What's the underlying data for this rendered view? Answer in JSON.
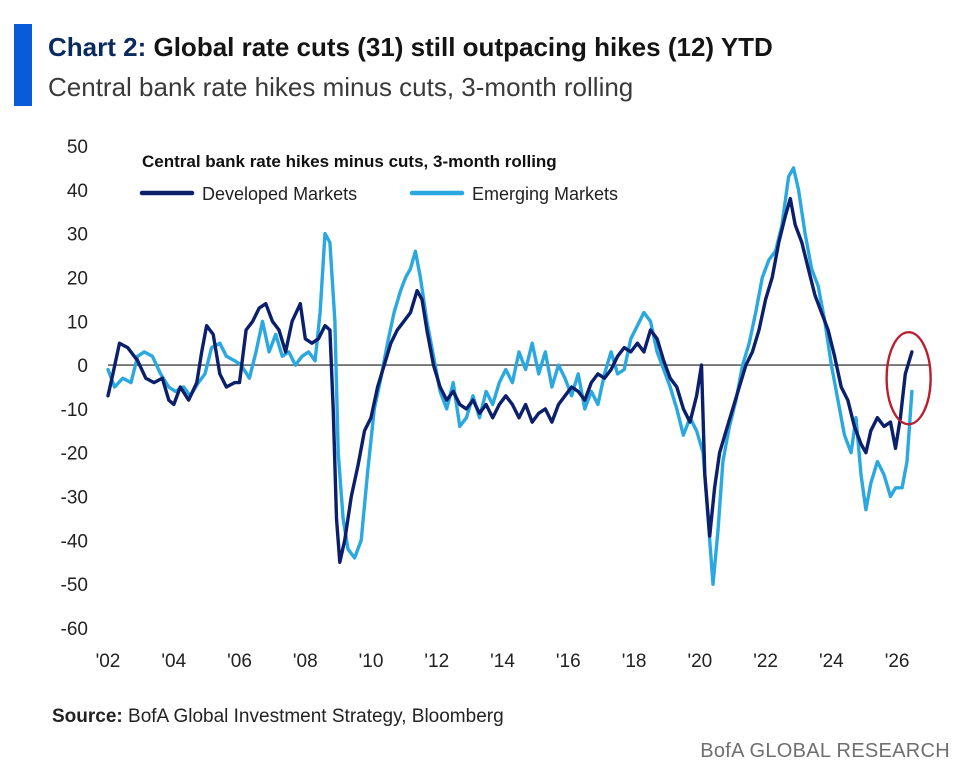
{
  "header": {
    "title_lead": "Chart 2:",
    "title_rest": "Global rate cuts (31) still outpacing hikes (12) YTD",
    "subtitle": "Central bank rate hikes minus cuts, 3-month rolling"
  },
  "footer": {
    "source_label": "Source:",
    "source_text": "BofA Global Investment Strategy, Bloomberg",
    "brand": "BofA GLOBAL RESEARCH"
  },
  "colors": {
    "accent": "#0a5bd8",
    "developed": "#0b1f6b",
    "emerging": "#2ba8e0",
    "highlight_circle": "#b8202f",
    "zero_line": "#444444"
  },
  "chart_data": {
    "type": "line",
    "title": "Central bank rate hikes minus cuts, 3-month rolling",
    "legend_placement": "top-left",
    "grid": false,
    "ylim": [
      -60,
      50
    ],
    "xlim": [
      2002,
      2027
    ],
    "y_ticks": [
      50,
      40,
      30,
      20,
      10,
      0,
      -10,
      -20,
      -30,
      -40,
      -50,
      -60
    ],
    "x_ticks": [
      {
        "value": 2002,
        "label": "'02"
      },
      {
        "value": 2004,
        "label": "'04"
      },
      {
        "value": 2006,
        "label": "'06"
      },
      {
        "value": 2008,
        "label": "'08"
      },
      {
        "value": 2010,
        "label": "'10"
      },
      {
        "value": 2012,
        "label": "'12"
      },
      {
        "value": 2014,
        "label": "'14"
      },
      {
        "value": 2016,
        "label": "'16"
      },
      {
        "value": 2018,
        "label": "'18"
      },
      {
        "value": 2020,
        "label": "'20"
      },
      {
        "value": 2022,
        "label": "'22"
      },
      {
        "value": 2024,
        "label": "'24"
      },
      {
        "value": 2026,
        "label": "'26"
      }
    ],
    "highlight": {
      "x": 2026.35,
      "y": -3,
      "label": ""
    },
    "series": [
      {
        "name": "Developed Markets",
        "color": "#0b1f6b",
        "points": [
          [
            2002.0,
            -7
          ],
          [
            2002.15,
            -2
          ],
          [
            2002.35,
            5
          ],
          [
            2002.6,
            4
          ],
          [
            2002.9,
            1
          ],
          [
            2003.15,
            -3
          ],
          [
            2003.4,
            -4
          ],
          [
            2003.65,
            -3
          ],
          [
            2003.85,
            -8
          ],
          [
            2004.0,
            -9
          ],
          [
            2004.2,
            -5
          ],
          [
            2004.45,
            -8
          ],
          [
            2004.7,
            -4
          ],
          [
            2004.85,
            3
          ],
          [
            2005.0,
            9
          ],
          [
            2005.2,
            7
          ],
          [
            2005.4,
            -2
          ],
          [
            2005.6,
            -5
          ],
          [
            2005.85,
            -4
          ],
          [
            2006.0,
            -4
          ],
          [
            2006.2,
            8
          ],
          [
            2006.4,
            10
          ],
          [
            2006.6,
            13
          ],
          [
            2006.8,
            14
          ],
          [
            2007.0,
            10
          ],
          [
            2007.2,
            8
          ],
          [
            2007.4,
            3
          ],
          [
            2007.6,
            10
          ],
          [
            2007.85,
            14
          ],
          [
            2008.0,
            6
          ],
          [
            2008.2,
            5
          ],
          [
            2008.4,
            6
          ],
          [
            2008.6,
            9
          ],
          [
            2008.75,
            8
          ],
          [
            2008.85,
            -10
          ],
          [
            2008.95,
            -35
          ],
          [
            2009.05,
            -45
          ],
          [
            2009.2,
            -40
          ],
          [
            2009.4,
            -30
          ],
          [
            2009.6,
            -23
          ],
          [
            2009.8,
            -15
          ],
          [
            2010.0,
            -12
          ],
          [
            2010.2,
            -5
          ],
          [
            2010.4,
            0
          ],
          [
            2010.6,
            5
          ],
          [
            2010.8,
            8
          ],
          [
            2011.0,
            10
          ],
          [
            2011.2,
            12
          ],
          [
            2011.4,
            17
          ],
          [
            2011.55,
            15
          ],
          [
            2011.7,
            8
          ],
          [
            2011.9,
            0
          ],
          [
            2012.1,
            -5
          ],
          [
            2012.3,
            -8
          ],
          [
            2012.5,
            -6
          ],
          [
            2012.7,
            -9
          ],
          [
            2012.9,
            -10
          ],
          [
            2013.1,
            -8
          ],
          [
            2013.3,
            -11
          ],
          [
            2013.5,
            -9
          ],
          [
            2013.7,
            -12
          ],
          [
            2013.9,
            -9
          ],
          [
            2014.1,
            -7
          ],
          [
            2014.3,
            -9
          ],
          [
            2014.5,
            -12
          ],
          [
            2014.7,
            -9
          ],
          [
            2014.9,
            -13
          ],
          [
            2015.1,
            -11
          ],
          [
            2015.3,
            -10
          ],
          [
            2015.5,
            -13
          ],
          [
            2015.7,
            -9
          ],
          [
            2015.9,
            -7
          ],
          [
            2016.1,
            -5
          ],
          [
            2016.3,
            -6
          ],
          [
            2016.5,
            -8
          ],
          [
            2016.7,
            -4
          ],
          [
            2016.9,
            -2
          ],
          [
            2017.1,
            -3
          ],
          [
            2017.3,
            -1
          ],
          [
            2017.5,
            2
          ],
          [
            2017.7,
            4
          ],
          [
            2017.9,
            3
          ],
          [
            2018.1,
            5
          ],
          [
            2018.3,
            3
          ],
          [
            2018.5,
            8
          ],
          [
            2018.7,
            6
          ],
          [
            2018.9,
            1
          ],
          [
            2019.1,
            -3
          ],
          [
            2019.3,
            -5
          ],
          [
            2019.5,
            -10
          ],
          [
            2019.7,
            -13
          ],
          [
            2019.9,
            -7
          ],
          [
            2020.05,
            0
          ],
          [
            2020.15,
            -25
          ],
          [
            2020.3,
            -39
          ],
          [
            2020.45,
            -28
          ],
          [
            2020.6,
            -20
          ],
          [
            2020.8,
            -15
          ],
          [
            2021.0,
            -10
          ],
          [
            2021.2,
            -5
          ],
          [
            2021.4,
            0
          ],
          [
            2021.6,
            3
          ],
          [
            2021.8,
            8
          ],
          [
            2022.0,
            15
          ],
          [
            2022.2,
            20
          ],
          [
            2022.4,
            28
          ],
          [
            2022.6,
            34
          ],
          [
            2022.75,
            38
          ],
          [
            2022.9,
            32
          ],
          [
            2023.1,
            28
          ],
          [
            2023.3,
            22
          ],
          [
            2023.5,
            16
          ],
          [
            2023.7,
            12
          ],
          [
            2023.9,
            8
          ],
          [
            2024.1,
            2
          ],
          [
            2024.3,
            -5
          ],
          [
            2024.5,
            -8
          ],
          [
            2024.7,
            -14
          ],
          [
            2024.9,
            -18
          ],
          [
            2025.05,
            -20
          ],
          [
            2025.2,
            -15
          ],
          [
            2025.4,
            -12
          ],
          [
            2025.6,
            -14
          ],
          [
            2025.8,
            -13
          ],
          [
            2025.95,
            -19
          ],
          [
            2026.1,
            -12
          ],
          [
            2026.25,
            -2
          ],
          [
            2026.45,
            3
          ]
        ]
      },
      {
        "name": "Emerging Markets",
        "color": "#2ba8e0",
        "points": [
          [
            2002.0,
            -1
          ],
          [
            2002.2,
            -5
          ],
          [
            2002.45,
            -3
          ],
          [
            2002.7,
            -4
          ],
          [
            2002.9,
            2
          ],
          [
            2003.1,
            3
          ],
          [
            2003.35,
            2
          ],
          [
            2003.6,
            -2
          ],
          [
            2003.85,
            -5
          ],
          [
            2004.05,
            -6
          ],
          [
            2004.3,
            -5
          ],
          [
            2004.5,
            -7
          ],
          [
            2004.75,
            -4
          ],
          [
            2004.95,
            -2
          ],
          [
            2005.15,
            4
          ],
          [
            2005.4,
            5
          ],
          [
            2005.6,
            2
          ],
          [
            2005.85,
            1
          ],
          [
            2006.05,
            0
          ],
          [
            2006.3,
            -3
          ],
          [
            2006.5,
            3
          ],
          [
            2006.7,
            10
          ],
          [
            2006.9,
            3
          ],
          [
            2007.1,
            7
          ],
          [
            2007.3,
            2
          ],
          [
            2007.5,
            3
          ],
          [
            2007.7,
            0
          ],
          [
            2007.9,
            2
          ],
          [
            2008.1,
            3
          ],
          [
            2008.3,
            1
          ],
          [
            2008.45,
            12
          ],
          [
            2008.6,
            30
          ],
          [
            2008.75,
            28
          ],
          [
            2008.9,
            10
          ],
          [
            2009.0,
            -20
          ],
          [
            2009.15,
            -35
          ],
          [
            2009.3,
            -42
          ],
          [
            2009.5,
            -44
          ],
          [
            2009.7,
            -40
          ],
          [
            2009.9,
            -24
          ],
          [
            2010.1,
            -10
          ],
          [
            2010.3,
            -3
          ],
          [
            2010.5,
            5
          ],
          [
            2010.7,
            12
          ],
          [
            2010.9,
            17
          ],
          [
            2011.05,
            20
          ],
          [
            2011.2,
            22
          ],
          [
            2011.35,
            26
          ],
          [
            2011.5,
            20
          ],
          [
            2011.7,
            10
          ],
          [
            2011.9,
            2
          ],
          [
            2012.1,
            -6
          ],
          [
            2012.3,
            -10
          ],
          [
            2012.5,
            -4
          ],
          [
            2012.7,
            -14
          ],
          [
            2012.9,
            -12
          ],
          [
            2013.1,
            -7
          ],
          [
            2013.3,
            -12
          ],
          [
            2013.5,
            -6
          ],
          [
            2013.7,
            -9
          ],
          [
            2013.9,
            -4
          ],
          [
            2014.1,
            -1
          ],
          [
            2014.3,
            -4
          ],
          [
            2014.5,
            3
          ],
          [
            2014.7,
            -1
          ],
          [
            2014.9,
            5
          ],
          [
            2015.1,
            -2
          ],
          [
            2015.3,
            3
          ],
          [
            2015.5,
            -5
          ],
          [
            2015.7,
            0
          ],
          [
            2015.9,
            -3
          ],
          [
            2016.1,
            -7
          ],
          [
            2016.3,
            -2
          ],
          [
            2016.5,
            -10
          ],
          [
            2016.7,
            -6
          ],
          [
            2016.9,
            -9
          ],
          [
            2017.1,
            -2
          ],
          [
            2017.3,
            3
          ],
          [
            2017.5,
            -2
          ],
          [
            2017.7,
            -1
          ],
          [
            2017.9,
            6
          ],
          [
            2018.1,
            9
          ],
          [
            2018.3,
            12
          ],
          [
            2018.5,
            10
          ],
          [
            2018.7,
            3
          ],
          [
            2018.9,
            -1
          ],
          [
            2019.1,
            -5
          ],
          [
            2019.3,
            -10
          ],
          [
            2019.5,
            -16
          ],
          [
            2019.7,
            -12
          ],
          [
            2019.9,
            -15
          ],
          [
            2020.1,
            -20
          ],
          [
            2020.25,
            -35
          ],
          [
            2020.4,
            -50
          ],
          [
            2020.55,
            -38
          ],
          [
            2020.7,
            -22
          ],
          [
            2020.9,
            -14
          ],
          [
            2021.1,
            -8
          ],
          [
            2021.3,
            0
          ],
          [
            2021.5,
            5
          ],
          [
            2021.7,
            12
          ],
          [
            2021.9,
            20
          ],
          [
            2022.1,
            24
          ],
          [
            2022.3,
            26
          ],
          [
            2022.5,
            32
          ],
          [
            2022.7,
            43
          ],
          [
            2022.85,
            45
          ],
          [
            2023.0,
            40
          ],
          [
            2023.2,
            30
          ],
          [
            2023.4,
            22
          ],
          [
            2023.6,
            18
          ],
          [
            2023.8,
            10
          ],
          [
            2024.0,
            0
          ],
          [
            2024.2,
            -8
          ],
          [
            2024.4,
            -16
          ],
          [
            2024.6,
            -20
          ],
          [
            2024.75,
            -12
          ],
          [
            2024.9,
            -25
          ],
          [
            2025.05,
            -33
          ],
          [
            2025.2,
            -27
          ],
          [
            2025.4,
            -22
          ],
          [
            2025.6,
            -25
          ],
          [
            2025.8,
            -30
          ],
          [
            2025.95,
            -28
          ],
          [
            2026.15,
            -28
          ],
          [
            2026.3,
            -22
          ],
          [
            2026.45,
            -6
          ]
        ]
      }
    ]
  }
}
